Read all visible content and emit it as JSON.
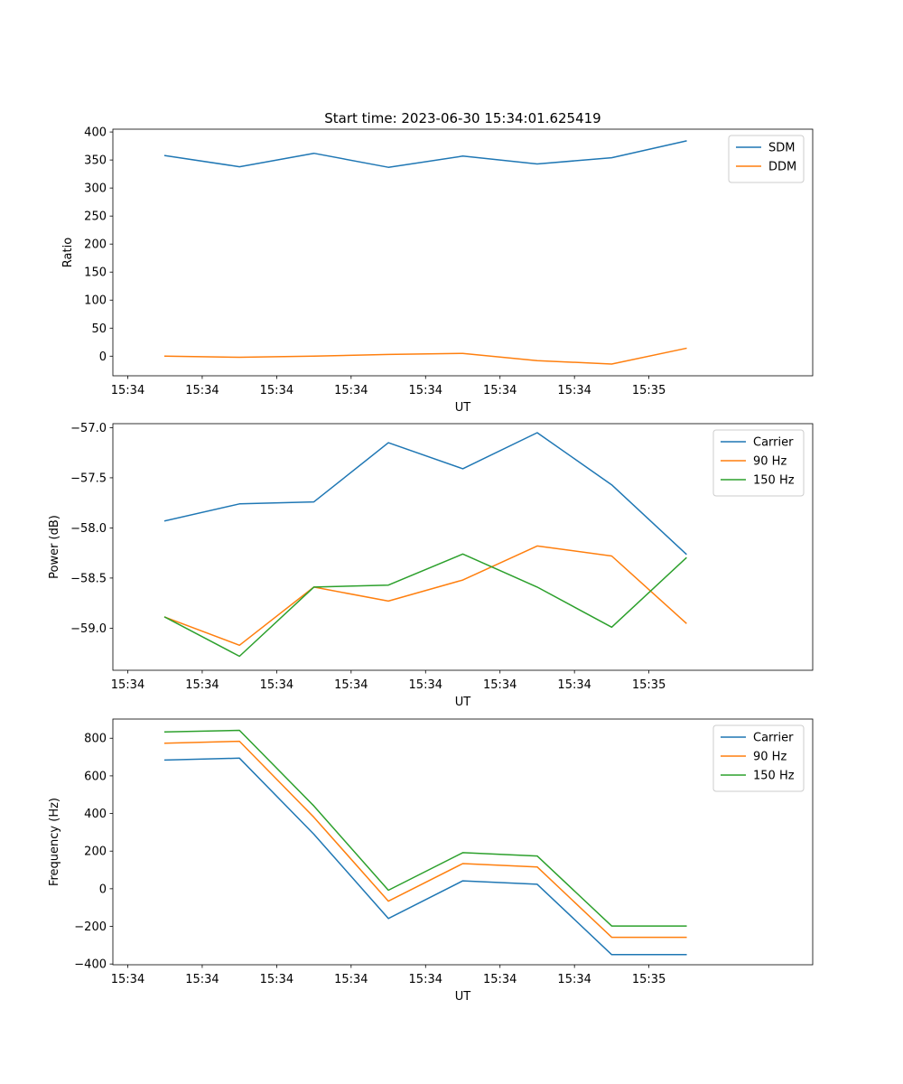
{
  "figure": {
    "suptitle": "Start time: 2023-06-30 15:34:01.625419"
  },
  "chart_data": [
    {
      "type": "line",
      "title": "Start time: 2023-06-30 15:34:01.625419",
      "xlabel": "UT",
      "ylabel": "Ratio",
      "x_ticks": [
        "15:34",
        "15:34",
        "15:34",
        "15:34",
        "15:34",
        "15:34",
        "15:34",
        "15:35"
      ],
      "xlim": [
        -0.2,
        9.2
      ],
      "ylim": [
        -35,
        405
      ],
      "y_ticks": [
        0,
        50,
        100,
        150,
        200,
        250,
        300,
        350,
        400
      ],
      "legend": "top-right",
      "grid": false,
      "x": [
        0.5,
        1.5,
        2.5,
        3.5,
        4.5,
        5.5,
        6.5,
        7.5
      ],
      "series": [
        {
          "name": "SDM",
          "color": "#1f77b4",
          "values": [
            358,
            338,
            362,
            337,
            357,
            343,
            354,
            384
          ]
        },
        {
          "name": "DDM",
          "color": "#ff7f0e",
          "values": [
            0,
            -2,
            0,
            3,
            5,
            -8,
            -14,
            14
          ]
        }
      ]
    },
    {
      "type": "line",
      "xlabel": "UT",
      "ylabel": "Power (dB)",
      "x_ticks": [
        "15:34",
        "15:34",
        "15:34",
        "15:34",
        "15:34",
        "15:34",
        "15:34",
        "15:35"
      ],
      "xlim": [
        -0.2,
        9.2
      ],
      "ylim": [
        -59.42,
        -56.96
      ],
      "y_ticks": [
        -59.0,
        -58.5,
        -58.0,
        -57.5,
        -57.0
      ],
      "y_tick_labels": [
        "−59.0",
        "−58.5",
        "−58.0",
        "−57.5",
        "−57.0"
      ],
      "legend": "top-right",
      "grid": false,
      "x": [
        0.5,
        1.5,
        2.5,
        3.5,
        4.5,
        5.5,
        6.5,
        7.5
      ],
      "series": [
        {
          "name": "Carrier",
          "color": "#1f77b4",
          "values": [
            -57.93,
            -57.76,
            -57.74,
            -57.15,
            -57.41,
            -57.05,
            -57.57,
            -58.26
          ]
        },
        {
          "name": "90 Hz",
          "color": "#ff7f0e",
          "values": [
            -58.89,
            -59.17,
            -58.59,
            -58.73,
            -58.52,
            -58.18,
            -58.28,
            -58.95
          ]
        },
        {
          "name": "150 Hz",
          "color": "#2ca02c",
          "values": [
            -58.89,
            -59.28,
            -58.59,
            -58.57,
            -58.26,
            -58.59,
            -58.99,
            -58.3
          ]
        }
      ]
    },
    {
      "type": "line",
      "xlabel": "UT",
      "ylabel": "Frequency (Hz)",
      "x_ticks": [
        "15:34",
        "15:34",
        "15:34",
        "15:34",
        "15:34",
        "15:34",
        "15:34",
        "15:35"
      ],
      "xlim": [
        -0.2,
        9.2
      ],
      "ylim": [
        -404,
        902
      ],
      "y_ticks": [
        -400,
        -200,
        0,
        200,
        400,
        600,
        800
      ],
      "y_tick_labels": [
        "−400",
        "−200",
        "0",
        "200",
        "400",
        "600",
        "800"
      ],
      "legend": "top-right",
      "grid": false,
      "x": [
        0.5,
        1.5,
        2.5,
        3.5,
        4.5,
        5.5,
        6.5,
        7.5
      ],
      "series": [
        {
          "name": "Carrier",
          "color": "#1f77b4",
          "values": [
            684,
            694,
            290,
            -158,
            42,
            24,
            -350,
            -350
          ]
        },
        {
          "name": "90 Hz",
          "color": "#ff7f0e",
          "values": [
            774,
            784,
            380,
            -66,
            134,
            116,
            -258,
            -258
          ]
        },
        {
          "name": "150 Hz",
          "color": "#2ca02c",
          "values": [
            834,
            842,
            440,
            -8,
            192,
            174,
            -198,
            -198
          ]
        }
      ]
    }
  ]
}
